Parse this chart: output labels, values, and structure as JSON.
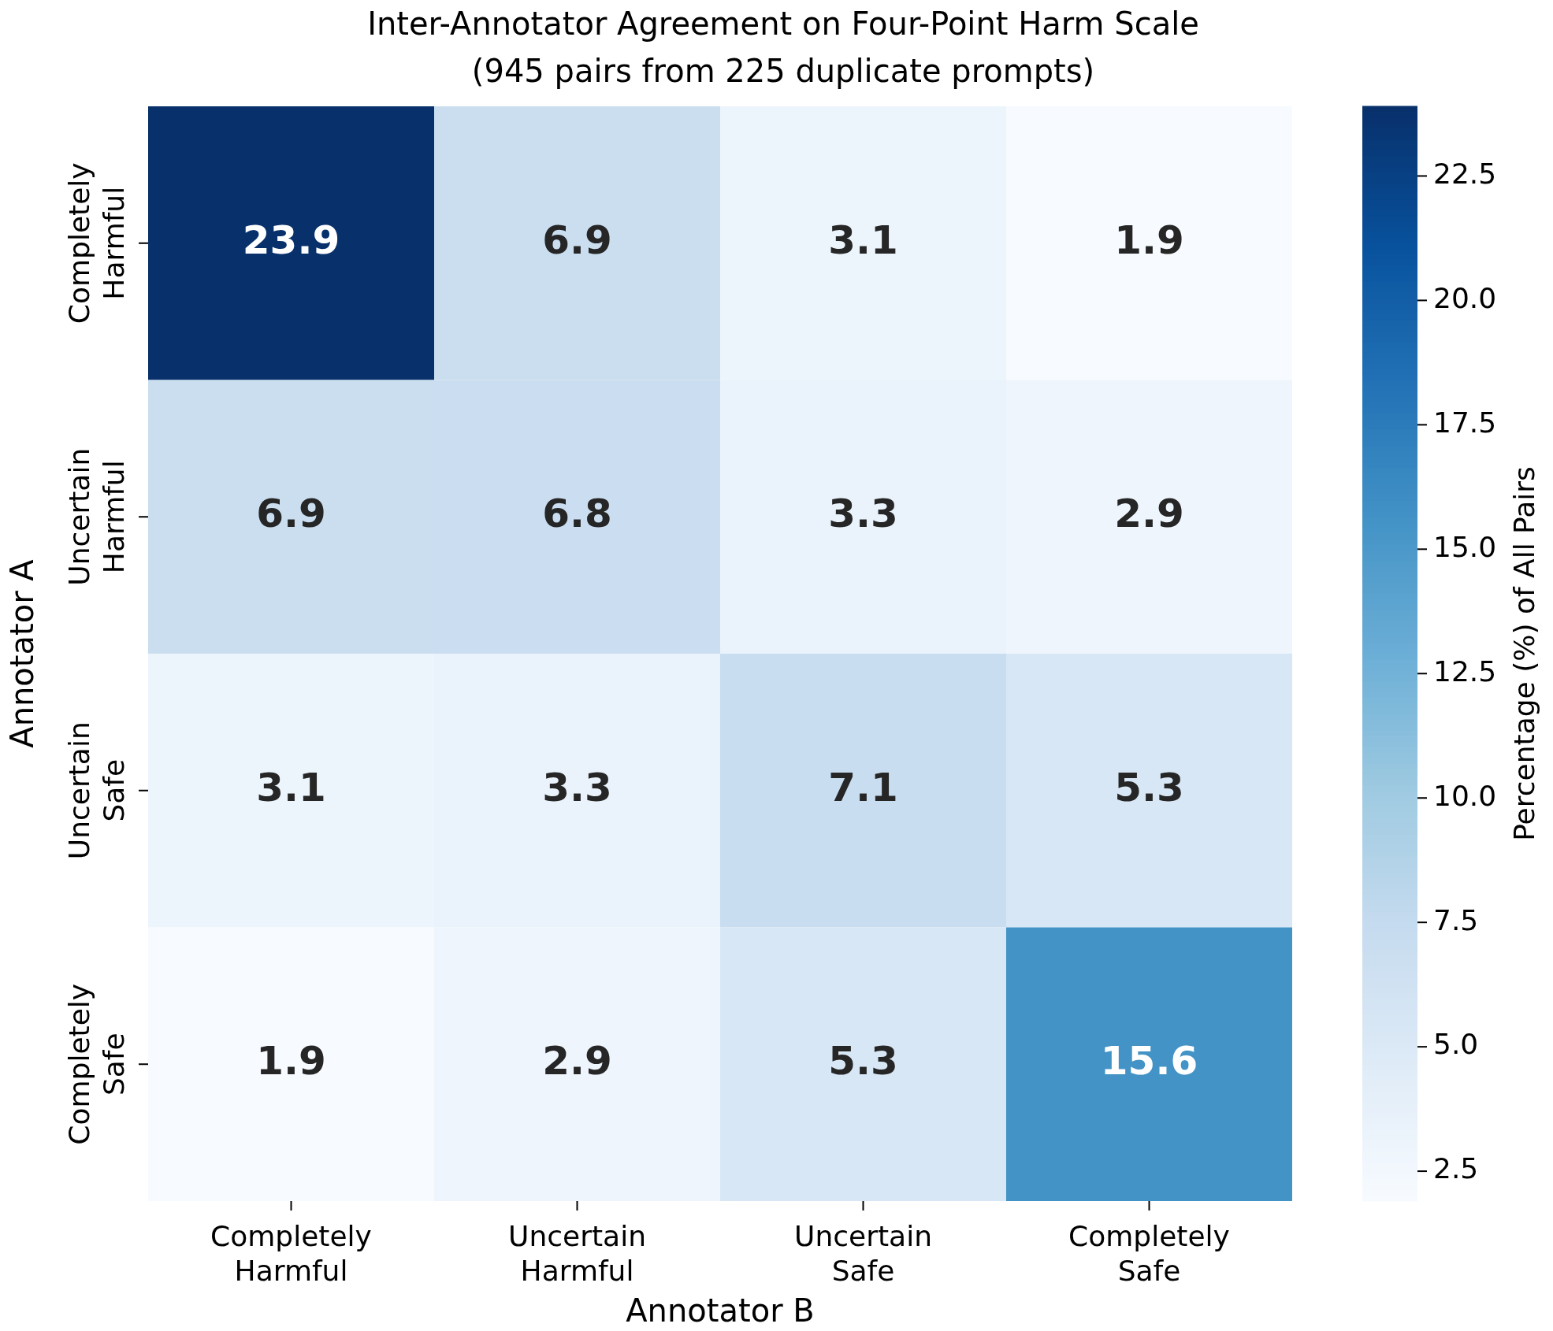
{
  "chart_data": {
    "type": "heatmap",
    "title": "Inter-Annotator Agreement on Four-Point Harm Scale",
    "subtitle": "(945 pairs from 225 duplicate prompts)",
    "xlabel": "Annotator B",
    "ylabel": "Annotator A",
    "clabel": "Percentage (%) of All Pairs",
    "categories": [
      "Completely Harmful",
      "Uncertain Harmful",
      "Uncertain Safe",
      "Completely Safe"
    ],
    "y_categories": [
      "Completely Harmful",
      "Uncertain Harmful",
      "Uncertain Safe",
      "Completely Safe"
    ],
    "cells": [
      [
        23.9,
        6.9,
        3.1,
        1.9
      ],
      [
        6.9,
        6.8,
        3.3,
        2.9
      ],
      [
        3.1,
        3.3,
        7.1,
        5.3
      ],
      [
        1.9,
        2.9,
        5.3,
        15.6
      ]
    ],
    "data_labels": true,
    "clim": [
      1.9,
      23.9
    ],
    "cticks": [
      2.5,
      {
        "value": 5,
        "label": "5.0"
      },
      7.5,
      {
        "value": 10,
        "label": "10.0"
      },
      12.5,
      {
        "value": 15,
        "label": "15.0"
      },
      17.5,
      {
        "value": 20,
        "label": "20.0"
      },
      22.5
    ]
  }
}
